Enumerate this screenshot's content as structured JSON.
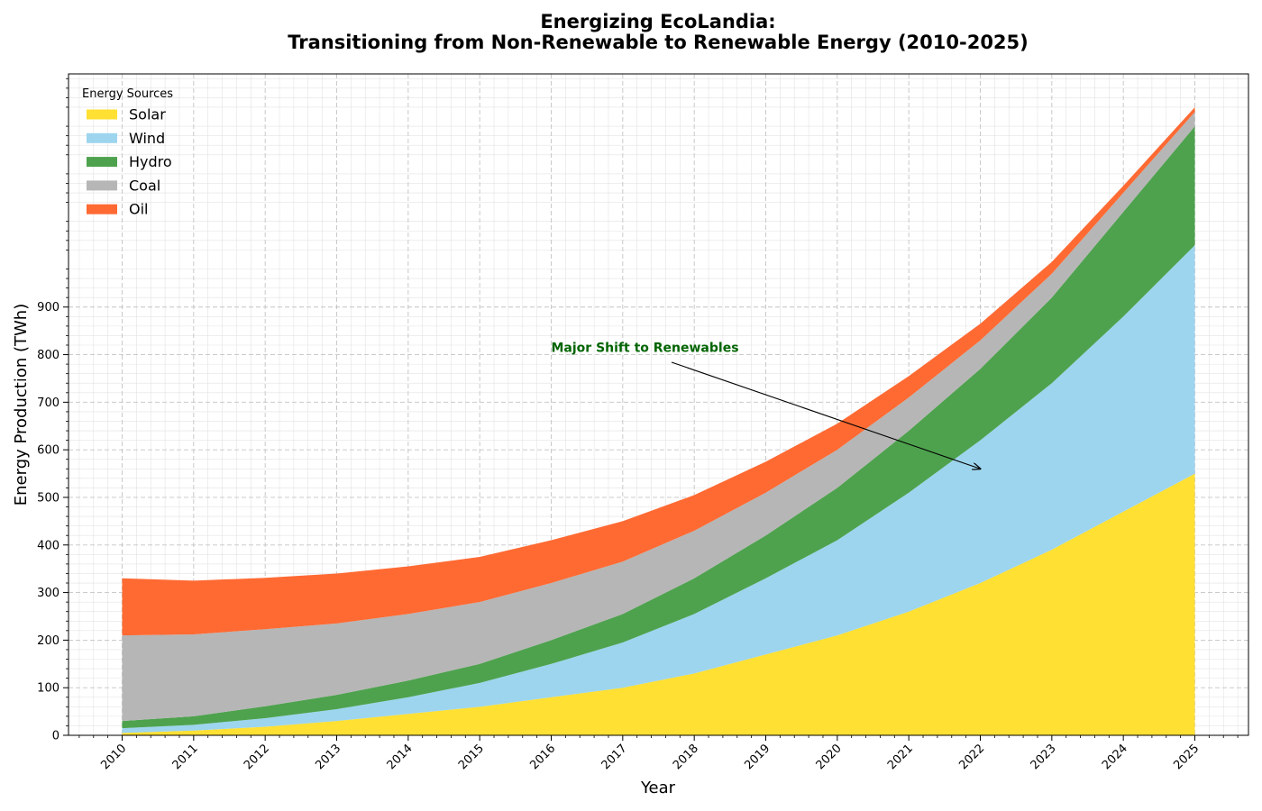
{
  "chart_data": {
    "type": "area",
    "stacked": true,
    "title_line1": "Energizing EcoLandia:",
    "title_line2": "Transitioning from Non-Renewable to Renewable Energy (2010-2025)",
    "xlabel": "Year",
    "ylabel": "Energy Production (TWh)",
    "x": [
      2010,
      2011,
      2012,
      2013,
      2014,
      2015,
      2016,
      2017,
      2018,
      2019,
      2020,
      2021,
      2022,
      2023,
      2024,
      2025
    ],
    "x_tick_labels": [
      "2010",
      "2011",
      "2012",
      "2013",
      "2014",
      "2015",
      "2016",
      "2017",
      "2018",
      "2019",
      "2020",
      "2021",
      "2022",
      "2023",
      "2024",
      "2025"
    ],
    "y_ticks": [
      0,
      100,
      200,
      300,
      400,
      500,
      600,
      700,
      800,
      900
    ],
    "y_tick_labels": [
      "0",
      "100",
      "200",
      "300",
      "400",
      "500",
      "600",
      "700",
      "800",
      "900"
    ],
    "xlim": [
      2009.25,
      2025.75
    ],
    "ylim": [
      0,
      1390
    ],
    "grid": true,
    "legend_title": "Energy Sources",
    "legend_position": "top-left",
    "series": [
      {
        "name": "Solar",
        "color": "#FFE033",
        "values": [
          5,
          10,
          18,
          30,
          45,
          60,
          80,
          100,
          130,
          170,
          210,
          260,
          320,
          390,
          470,
          550
        ]
      },
      {
        "name": "Wind",
        "color": "#9DD5EE",
        "values": [
          10,
          12,
          18,
          25,
          35,
          50,
          70,
          95,
          125,
          160,
          200,
          250,
          300,
          350,
          410,
          480
        ]
      },
      {
        "name": "Hydro",
        "color": "#4EA24E",
        "values": [
          15,
          18,
          25,
          30,
          35,
          40,
          50,
          60,
          75,
          90,
          110,
          130,
          150,
          180,
          220,
          250
        ]
      },
      {
        "name": "Coal",
        "color": "#B6B6B6",
        "values": [
          180,
          172,
          162,
          150,
          140,
          130,
          120,
          110,
          100,
          90,
          80,
          70,
          60,
          50,
          40,
          30
        ]
      },
      {
        "name": "Oil",
        "color": "#FF6A33",
        "values": [
          120,
          113,
          108,
          105,
          100,
          95,
          90,
          85,
          75,
          65,
          55,
          45,
          35,
          25,
          15,
          10
        ]
      }
    ],
    "annotation": {
      "text": "Major Shift to Renewables",
      "color": "#006400",
      "text_x": 2016,
      "text_y": 800,
      "arrow_to_x": 2022,
      "arrow_to_y": 560
    }
  }
}
